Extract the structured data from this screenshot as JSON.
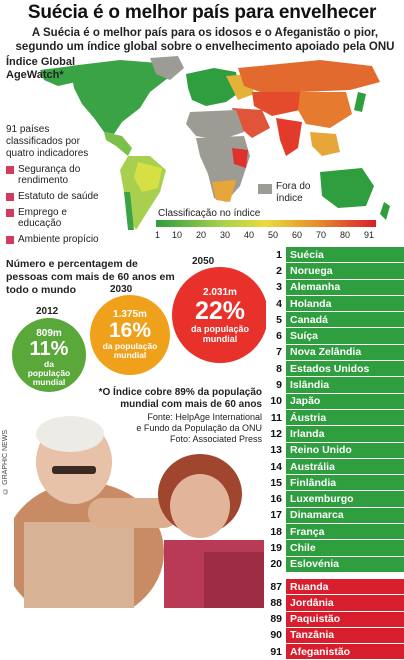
{
  "header": {
    "title": "Suécia é o melhor país para envelhecer",
    "subtitle": "A Suécia é o melhor país para os idosos e o Afeganistão o pior, segundo um índice global sobre o envelhecimento apoiado pela ONU"
  },
  "map_section": {
    "index_title_line1": "Índice Global",
    "index_title_line2": "AgeWatch*",
    "indicators_intro": "91 países classificados por quatro indicadores",
    "indicators": [
      "Segurança do rendimento",
      "Estatuto de saúde",
      "Emprego e educação",
      "Ambiente propício"
    ],
    "outside_index": "Fora do índice",
    "scale_title": "Classificação no índice",
    "scale_ticks": [
      "1",
      "10",
      "20",
      "30",
      "40",
      "50",
      "60",
      "70",
      "80",
      "91"
    ],
    "colors": {
      "best": "#2e9e3e",
      "mid": "#e8dc3c",
      "worst": "#d81e2c",
      "outside": "#9c9c94",
      "indicator": "#d23a5e"
    }
  },
  "population": {
    "title": "Número e percentagem de pessoas com mais de 60 anos em todo o mundo",
    "share_label": "da população mundial",
    "circles": [
      {
        "year": "2012",
        "count": "809m",
        "percent": "11%",
        "color": "#5aa83a"
      },
      {
        "year": "2030",
        "count": "1.375m",
        "percent": "16%",
        "color": "#f0a11c"
      },
      {
        "year": "2050",
        "count": "2.031m",
        "percent": "22%",
        "color": "#e8312a"
      }
    ]
  },
  "footnote": "*O Índice cobre 89% da população mundial com mais de 60 anos",
  "source": {
    "line1": "Fonte: HelpAge International",
    "line2": "e Fundo da População da ONU",
    "line3": "Foto: Associated Press"
  },
  "credit": "© GRAPHIC NEWS",
  "ranking": {
    "top": [
      {
        "rank": "1",
        "country": "Suécia"
      },
      {
        "rank": "2",
        "country": "Noruega"
      },
      {
        "rank": "3",
        "country": "Alemanha"
      },
      {
        "rank": "4",
        "country": "Holanda"
      },
      {
        "rank": "5",
        "country": "Canadá"
      },
      {
        "rank": "6",
        "country": "Suíça"
      },
      {
        "rank": "7",
        "country": "Nova Zelândia"
      },
      {
        "rank": "8",
        "country": "Estados Unidos"
      },
      {
        "rank": "9",
        "country": "Islândia"
      },
      {
        "rank": "10",
        "country": "Japão"
      },
      {
        "rank": "11",
        "country": "Áustria"
      },
      {
        "rank": "12",
        "country": "Irlanda"
      },
      {
        "rank": "13",
        "country": "Reino Unido"
      },
      {
        "rank": "14",
        "country": "Austrália"
      },
      {
        "rank": "15",
        "country": "Finlândia"
      },
      {
        "rank": "16",
        "country": "Luxemburgo"
      },
      {
        "rank": "17",
        "country": "Dinamarca"
      },
      {
        "rank": "18",
        "country": "França"
      },
      {
        "rank": "19",
        "country": "Chile"
      },
      {
        "rank": "20",
        "country": "Eslovénia"
      }
    ],
    "bottom": [
      {
        "rank": "87",
        "country": "Ruanda"
      },
      {
        "rank": "88",
        "country": "Jordânia"
      },
      {
        "rank": "89",
        "country": "Paquistão"
      },
      {
        "rank": "90",
        "country": "Tanzânia"
      },
      {
        "rank": "91",
        "country": "Afeganistão"
      }
    ],
    "top_color": "#2e9e3e",
    "bottom_color": "#d81e2c"
  }
}
